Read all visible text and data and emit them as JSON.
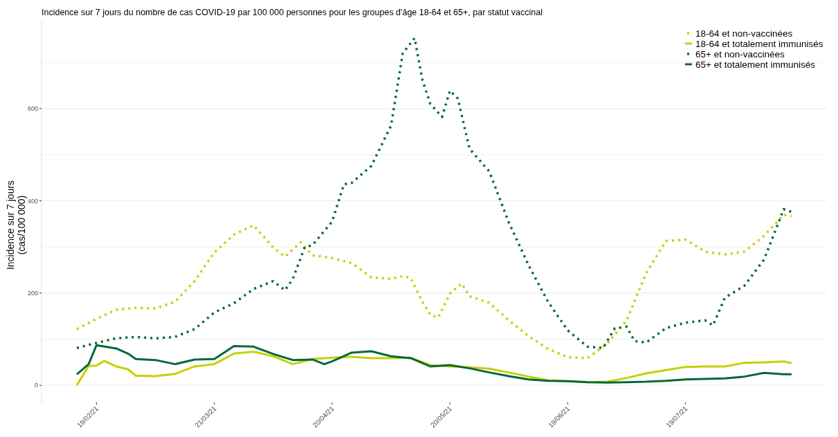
{
  "chart_data": {
    "type": "line",
    "title": "Incidence sur 7 jours du nombre de cas COVID-19 par 100 000 personnes pour les groupes d'âge 18-64 et 65+, par statut vaccinal",
    "ylabel": "Incidence sur 7 jours\n(cas/100 000)",
    "xlim": [
      "2021-02-05",
      "2021-08-24"
    ],
    "ylim": [
      -37,
      792
    ],
    "xticks": [
      {
        "value": "2021-02-19",
        "label": "19/02/21"
      },
      {
        "value": "2021-03-21",
        "label": "21/03/21"
      },
      {
        "value": "2021-04-20",
        "label": "20/04/21"
      },
      {
        "value": "2021-05-20",
        "label": "20/05/21"
      },
      {
        "value": "2021-06-19",
        "label": "19/06/21"
      },
      {
        "value": "2021-07-19",
        "label": "19/07/21"
      }
    ],
    "yticks": [
      0,
      {
        "value": 100,
        "label": null
      },
      200,
      {
        "value": 300,
        "label": null
      },
      400,
      {
        "value": 500,
        "label": null
      },
      600,
      {
        "value": 700,
        "label": null
      }
    ],
    "grid": "y",
    "legend": "top right",
    "tick_labels": true,
    "series": [
      {
        "name": "18-64 et non-vaccinées",
        "color": "#c5d000",
        "line_style": "dotted",
        "x": [
          "2021-02-14",
          "2021-02-19",
          "2021-02-24",
          "2021-03-01",
          "2021-03-06",
          "2021-03-11",
          "2021-03-16",
          "2021-03-21",
          "2021-03-26",
          "2021-03-31",
          "2021-04-05",
          "2021-04-08",
          "2021-04-12",
          "2021-04-15",
          "2021-04-20",
          "2021-04-25",
          "2021-04-30",
          "2021-05-05",
          "2021-05-08",
          "2021-05-10",
          "2021-05-13",
          "2021-05-15",
          "2021-05-17",
          "2021-05-20",
          "2021-05-23",
          "2021-05-25",
          "2021-05-30",
          "2021-06-04",
          "2021-06-09",
          "2021-06-14",
          "2021-06-19",
          "2021-06-24",
          "2021-06-29",
          "2021-07-04",
          "2021-07-09",
          "2021-07-14",
          "2021-07-19",
          "2021-07-24",
          "2021-07-29",
          "2021-08-03",
          "2021-08-08",
          "2021-08-13",
          "2021-08-15"
        ],
        "values": [
          122,
          144,
          164,
          168,
          167,
          181,
          226,
          288,
          327,
          347,
          299,
          279,
          310,
          282,
          276,
          265,
          234,
          231,
          237,
          233,
          181,
          153,
          147,
          199,
          221,
          193,
          179,
          141,
          107,
          79,
          61,
          59,
          90,
          141,
          244,
          313,
          316,
          290,
          284,
          290,
          324,
          370,
          367
        ]
      },
      {
        "name": "18-64 et totalement immunisés",
        "color": "#c5d000",
        "line_style": "solid",
        "x": [
          "2021-02-14",
          "2021-02-17",
          "2021-02-19",
          "2021-02-21",
          "2021-02-24",
          "2021-02-27",
          "2021-03-01",
          "2021-03-06",
          "2021-03-11",
          "2021-03-16",
          "2021-03-21",
          "2021-03-26",
          "2021-03-31",
          "2021-04-05",
          "2021-04-10",
          "2021-04-15",
          "2021-04-20",
          "2021-04-25",
          "2021-04-30",
          "2021-05-05",
          "2021-05-10",
          "2021-05-15",
          "2021-05-20",
          "2021-05-25",
          "2021-05-30",
          "2021-06-04",
          "2021-06-09",
          "2021-06-14",
          "2021-06-19",
          "2021-06-24",
          "2021-06-29",
          "2021-07-04",
          "2021-07-09",
          "2021-07-14",
          "2021-07-19",
          "2021-07-24",
          "2021-07-29",
          "2021-08-03",
          "2021-08-08",
          "2021-08-13",
          "2021-08-15"
        ],
        "values": [
          0,
          42,
          43,
          53,
          41,
          35,
          21,
          20,
          25,
          41,
          46,
          69,
          73,
          63,
          46,
          57,
          60,
          62,
          59,
          59,
          60,
          44,
          41,
          39,
          36,
          28,
          19,
          11,
          9,
          7,
          8,
          16,
          26,
          33,
          40,
          41,
          41,
          49,
          50,
          52,
          48
        ]
      },
      {
        "name": "65+ et non-vaccinées",
        "color": "#006837",
        "line_style": "dotted",
        "x": [
          "2021-02-14",
          "2021-02-19",
          "2021-02-24",
          "2021-03-01",
          "2021-03-06",
          "2021-03-11",
          "2021-03-16",
          "2021-03-21",
          "2021-03-26",
          "2021-03-31",
          "2021-04-05",
          "2021-04-08",
          "2021-04-10",
          "2021-04-13",
          "2021-04-15",
          "2021-04-20",
          "2021-04-23",
          "2021-04-25",
          "2021-04-30",
          "2021-05-05",
          "2021-05-08",
          "2021-05-10",
          "2021-05-11",
          "2021-05-13",
          "2021-05-15",
          "2021-05-18",
          "2021-05-20",
          "2021-05-22",
          "2021-05-25",
          "2021-05-30",
          "2021-06-04",
          "2021-06-09",
          "2021-06-14",
          "2021-06-19",
          "2021-06-24",
          "2021-06-28",
          "2021-07-01",
          "2021-07-04",
          "2021-07-06",
          "2021-07-09",
          "2021-07-14",
          "2021-07-19",
          "2021-07-24",
          "2021-07-26",
          "2021-07-29",
          "2021-08-03",
          "2021-08-08",
          "2021-08-13",
          "2021-08-15"
        ],
        "values": [
          81,
          92,
          102,
          105,
          102,
          105,
          122,
          158,
          178,
          209,
          226,
          206,
          231,
          299,
          304,
          355,
          436,
          439,
          476,
          563,
          720,
          742,
          753,
          662,
          610,
          582,
          639,
          622,
          513,
          464,
          353,
          261,
          181,
          119,
          84,
          81,
          124,
          127,
          96,
          93,
          124,
          136,
          141,
          130,
          190,
          216,
          273,
          382,
          376
        ]
      },
      {
        "name": "65+ et totalement immunisés",
        "color": "#006837",
        "line_style": "solid",
        "x": [
          "2021-02-14",
          "2021-02-17",
          "2021-02-19",
          "2021-02-24",
          "2021-02-27",
          "2021-03-01",
          "2021-03-06",
          "2021-03-11",
          "2021-03-16",
          "2021-03-21",
          "2021-03-26",
          "2021-03-31",
          "2021-04-05",
          "2021-04-10",
          "2021-04-15",
          "2021-04-18",
          "2021-04-20",
          "2021-04-25",
          "2021-04-30",
          "2021-05-05",
          "2021-05-10",
          "2021-05-15",
          "2021-05-20",
          "2021-05-25",
          "2021-05-30",
          "2021-06-04",
          "2021-06-09",
          "2021-06-14",
          "2021-06-19",
          "2021-06-24",
          "2021-06-29",
          "2021-07-04",
          "2021-07-09",
          "2021-07-14",
          "2021-07-19",
          "2021-07-24",
          "2021-07-29",
          "2021-08-03",
          "2021-08-08",
          "2021-08-13",
          "2021-08-15"
        ],
        "values": [
          24,
          46,
          87,
          80,
          69,
          57,
          55,
          46,
          56,
          57,
          85,
          84,
          68,
          55,
          56,
          46,
          52,
          71,
          74,
          63,
          59,
          41,
          44,
          37,
          28,
          20,
          13,
          10,
          9,
          7,
          6,
          7,
          8,
          10,
          13,
          14,
          15,
          19,
          27,
          24,
          24
        ]
      }
    ]
  }
}
